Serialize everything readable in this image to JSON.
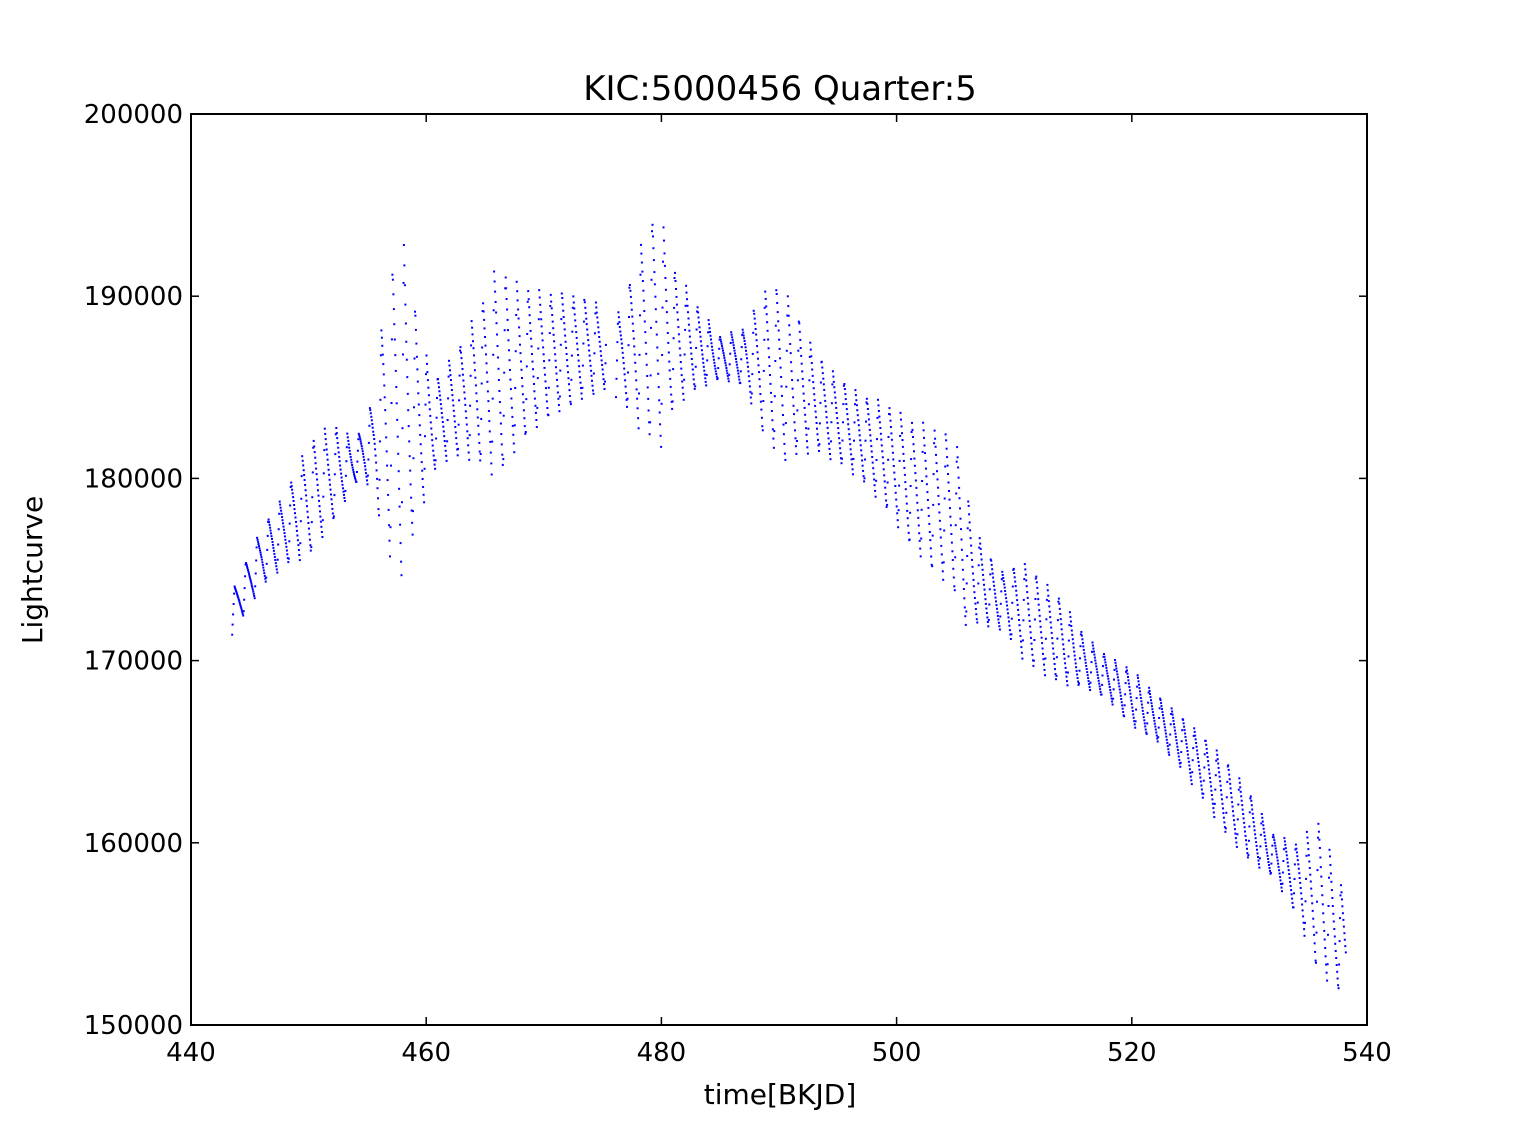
{
  "chart_data": {
    "type": "scatter",
    "title": "KIC:5000456 Quarter:5",
    "xlabel": "time[BKJD]",
    "ylabel": "Lightcurve",
    "xlim": [
      440,
      540
    ],
    "ylim": [
      150000,
      200000
    ],
    "xticks": [
      "440",
      "460",
      "480",
      "500",
      "520",
      "540"
    ],
    "yticks": [
      "150000",
      "160000",
      "170000",
      "180000",
      "190000",
      "200000"
    ],
    "grid": false,
    "marker_color": "#0000ff",
    "gap": [
      475.3,
      476.1
    ],
    "x_start": 443.5,
    "x_end": 538.2,
    "trend": [
      [
        443.5,
        172500
      ],
      [
        446,
        175500
      ],
      [
        448,
        177000
      ],
      [
        450,
        178500
      ],
      [
        452,
        180000
      ],
      [
        454,
        180800
      ],
      [
        456,
        182000
      ],
      [
        458,
        183000
      ],
      [
        460,
        182500
      ],
      [
        462,
        183500
      ],
      [
        464,
        184500
      ],
      [
        466,
        185200
      ],
      [
        468,
        185800
      ],
      [
        470,
        186300
      ],
      [
        472,
        186700
      ],
      [
        475,
        187000
      ],
      [
        476.5,
        186500
      ],
      [
        479,
        187500
      ],
      [
        482,
        187200
      ],
      [
        485,
        186500
      ],
      [
        487,
        186500
      ],
      [
        489,
        185800
      ],
      [
        491,
        185000
      ],
      [
        493,
        184000
      ],
      [
        495,
        183000
      ],
      [
        497,
        182000
      ],
      [
        499,
        181000
      ],
      [
        501,
        179500
      ],
      [
        503,
        178500
      ],
      [
        505,
        177500
      ],
      [
        506,
        175000
      ],
      [
        508,
        173500
      ],
      [
        510,
        172800
      ],
      [
        512,
        171800
      ],
      [
        514,
        170800
      ],
      [
        516,
        169800
      ],
      [
        518,
        168900
      ],
      [
        520,
        167800
      ],
      [
        522,
        166800
      ],
      [
        524,
        165500
      ],
      [
        526,
        164000
      ],
      [
        528,
        162300
      ],
      [
        530,
        160700
      ],
      [
        532,
        159200
      ],
      [
        534,
        157800
      ],
      [
        536,
        156500
      ],
      [
        538.2,
        154000
      ]
    ],
    "amplitude": [
      [
        443.5,
        1500
      ],
      [
        448,
        2500
      ],
      [
        450,
        4000
      ],
      [
        452,
        3500
      ],
      [
        454,
        1500
      ],
      [
        455.5,
        3000
      ],
      [
        456.5,
        9000
      ],
      [
        458,
        12000
      ],
      [
        459.5,
        6000
      ],
      [
        461,
        3000
      ],
      [
        463,
        4000
      ],
      [
        465,
        6000
      ],
      [
        466,
        7500
      ],
      [
        468,
        5500
      ],
      [
        470,
        4500
      ],
      [
        472,
        4000
      ],
      [
        475,
        3000
      ],
      [
        476.5,
        3000
      ],
      [
        478.5,
        7000
      ],
      [
        479.8,
        8500
      ],
      [
        481,
        5000
      ],
      [
        483,
        3000
      ],
      [
        485,
        1500
      ],
      [
        487,
        2000
      ],
      [
        489,
        5500
      ],
      [
        490.5,
        6000
      ],
      [
        493,
        3500
      ],
      [
        495,
        3000
      ],
      [
        497,
        3000
      ],
      [
        500,
        4000
      ],
      [
        503,
        5000
      ],
      [
        505.5,
        5500
      ],
      [
        507,
        3000
      ],
      [
        509,
        2000
      ],
      [
        511,
        3500
      ],
      [
        514,
        3000
      ],
      [
        516,
        1800
      ],
      [
        518,
        1500
      ],
      [
        520,
        2000
      ],
      [
        522,
        1600
      ],
      [
        524,
        1800
      ],
      [
        526,
        2200
      ],
      [
        528,
        2600
      ],
      [
        530,
        2400
      ],
      [
        532,
        1500
      ],
      [
        534,
        2500
      ],
      [
        536,
        5500
      ],
      [
        537.5,
        4000
      ],
      [
        538.2,
        3500
      ]
    ]
  }
}
